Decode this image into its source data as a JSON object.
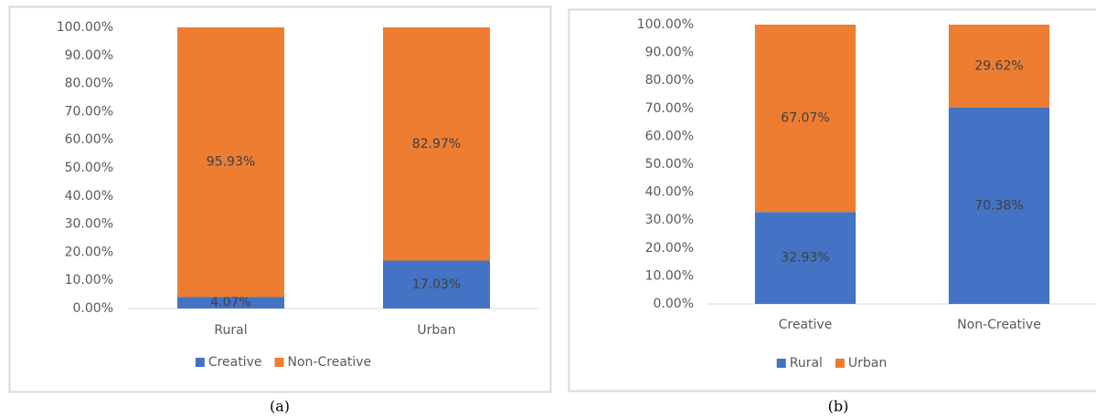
{
  "chart_data": [
    {
      "type": "bar",
      "stacked": true,
      "caption": "(a)",
      "categories": [
        "Rural",
        "Urban"
      ],
      "series": [
        {
          "name": "Creative",
          "color": "#4472c4",
          "values": [
            4.07,
            17.03
          ],
          "value_labels": [
            "4.07%",
            "17.03%"
          ]
        },
        {
          "name": "Non-Creative",
          "color": "#ed7d31",
          "values": [
            95.93,
            82.97
          ],
          "value_labels": [
            "95.93%",
            "82.97%"
          ]
        }
      ],
      "ylim": [
        0,
        100
      ],
      "yticks": [
        {
          "value": 0,
          "label": "0.00%"
        },
        {
          "value": 10,
          "label": "10.00%"
        },
        {
          "value": 20,
          "label": "20.00%"
        },
        {
          "value": 30,
          "label": "30.00%"
        },
        {
          "value": 40,
          "label": "40.00%"
        },
        {
          "value": 50,
          "label": "50.00%"
        },
        {
          "value": 60,
          "label": "60.00%"
        },
        {
          "value": 70,
          "label": "70.00%"
        },
        {
          "value": 80,
          "label": "80.00%"
        },
        {
          "value": 90,
          "label": "90.00%"
        },
        {
          "value": 100,
          "label": "100.00%"
        }
      ],
      "legend": "bottom"
    },
    {
      "type": "bar",
      "stacked": true,
      "caption": "(b)",
      "categories": [
        "Creative",
        "Non-Creative"
      ],
      "series": [
        {
          "name": "Rural",
          "color": "#4472c4",
          "values": [
            32.93,
            70.38
          ],
          "value_labels": [
            "32.93%",
            "70.38%"
          ]
        },
        {
          "name": "Urban",
          "color": "#ed7d31",
          "values": [
            67.07,
            29.62
          ],
          "value_labels": [
            "67.07%",
            "29.62%"
          ]
        }
      ],
      "ylim": [
        0,
        100
      ],
      "yticks": [
        {
          "value": 0,
          "label": "0.00%"
        },
        {
          "value": 10,
          "label": "10.00%"
        },
        {
          "value": 20,
          "label": "20.00%"
        },
        {
          "value": 30,
          "label": "30.00%"
        },
        {
          "value": 40,
          "label": "40.00%"
        },
        {
          "value": 50,
          "label": "50.00%"
        },
        {
          "value": 60,
          "label": "60.00%"
        },
        {
          "value": 70,
          "label": "70.00%"
        },
        {
          "value": 80,
          "label": "80.00%"
        },
        {
          "value": 90,
          "label": "90.00%"
        },
        {
          "value": 100,
          "label": "100.00%"
        }
      ],
      "legend": "bottom"
    }
  ]
}
